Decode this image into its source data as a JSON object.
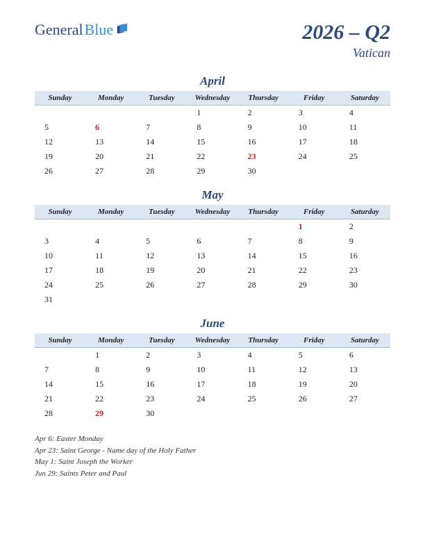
{
  "logo": {
    "part1": "General",
    "part2": "Blue"
  },
  "title": {
    "main": "2026 – Q2",
    "sub": "Vatican"
  },
  "colors": {
    "header_bg": "#dde7f3",
    "accent": "#2b4a7a",
    "holiday": "#c02020"
  },
  "day_headers": [
    "Sunday",
    "Monday",
    "Tuesday",
    "Wednesday",
    "Thursday",
    "Friday",
    "Saturday"
  ],
  "months": [
    {
      "name": "April",
      "weeks": [
        [
          "",
          "",
          "",
          "1",
          "2",
          "3",
          "4"
        ],
        [
          "5",
          "6",
          "7",
          "8",
          "9",
          "10",
          "11"
        ],
        [
          "12",
          "13",
          "14",
          "15",
          "16",
          "17",
          "18"
        ],
        [
          "19",
          "20",
          "21",
          "22",
          "23",
          "24",
          "25"
        ],
        [
          "26",
          "27",
          "28",
          "29",
          "30",
          "",
          ""
        ]
      ],
      "holidays": [
        "6",
        "23"
      ]
    },
    {
      "name": "May",
      "weeks": [
        [
          "",
          "",
          "",
          "",
          "",
          "1",
          "2"
        ],
        [
          "3",
          "4",
          "5",
          "6",
          "7",
          "8",
          "9"
        ],
        [
          "10",
          "11",
          "12",
          "13",
          "14",
          "15",
          "16"
        ],
        [
          "17",
          "18",
          "19",
          "20",
          "21",
          "22",
          "23"
        ],
        [
          "24",
          "25",
          "26",
          "27",
          "28",
          "29",
          "30"
        ],
        [
          "31",
          "",
          "",
          "",
          "",
          "",
          ""
        ]
      ],
      "holidays": [
        "1"
      ]
    },
    {
      "name": "June",
      "weeks": [
        [
          "",
          "1",
          "2",
          "3",
          "4",
          "5",
          "6"
        ],
        [
          "7",
          "8",
          "9",
          "10",
          "11",
          "12",
          "13"
        ],
        [
          "14",
          "15",
          "16",
          "17",
          "18",
          "19",
          "20"
        ],
        [
          "21",
          "22",
          "23",
          "24",
          "25",
          "26",
          "27"
        ],
        [
          "28",
          "29",
          "30",
          "",
          "",
          "",
          ""
        ]
      ],
      "holidays": [
        "29"
      ]
    }
  ],
  "holiday_list": [
    "Apr 6: Easter Monday",
    "Apr 23: Saint George - Name day of the Holy Father",
    "May 1: Saint Joseph the Worker",
    "Jun 29: Saints Peter and Paul"
  ]
}
